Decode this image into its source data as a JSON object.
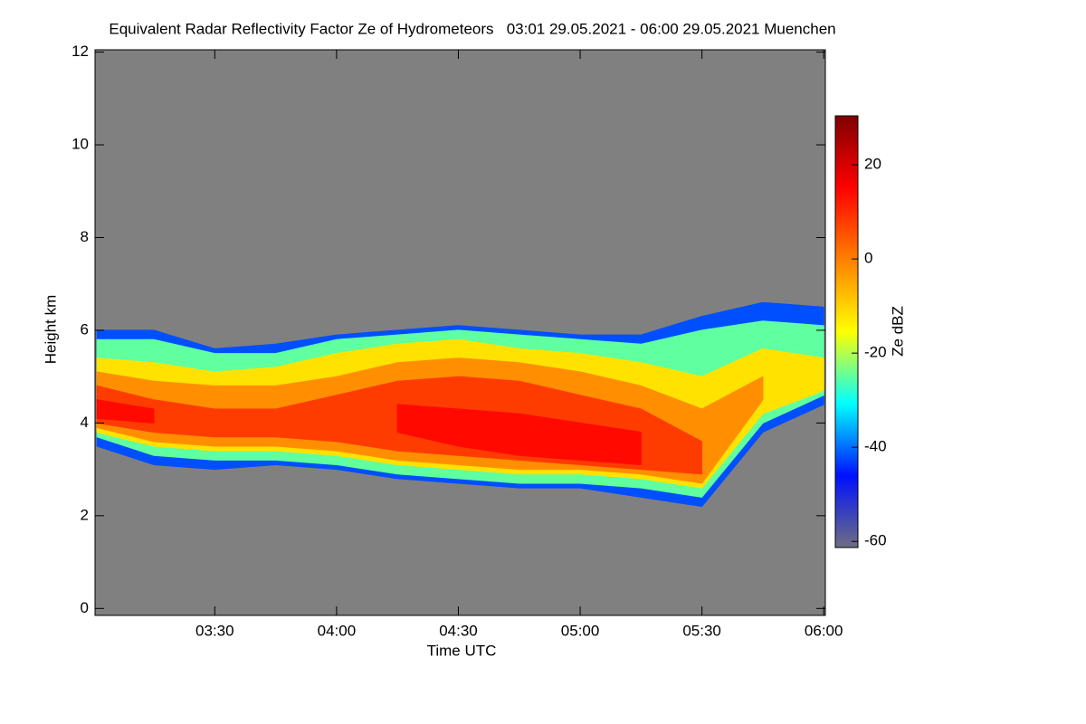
{
  "chart_data": {
    "type": "heatmap",
    "title": "Equivalent Radar Reflectivity Factor Ze of Hydrometeors   03:01 29.05.2021 - 06:00 29.05.2021 Muenchen",
    "xlabel": "Time UTC",
    "ylabel": "Height km",
    "colorbar_label": "Ze dBZ",
    "xlim": [
      180.5,
      360.4
    ],
    "xticks": [
      {
        "value": 210,
        "label": "03:30"
      },
      {
        "value": 240,
        "label": "04:00"
      },
      {
        "value": 270,
        "label": "04:30"
      },
      {
        "value": 300,
        "label": "05:00"
      },
      {
        "value": 330,
        "label": "05:30"
      },
      {
        "value": 360,
        "label": "06:00"
      }
    ],
    "ylim": [
      -0.15,
      12.05
    ],
    "yticks": [
      0,
      2,
      4,
      6,
      8,
      10,
      12
    ],
    "clim": [
      -61.3,
      30.4
    ],
    "cticks": [
      -60,
      -40,
      -20,
      0,
      20
    ],
    "colormap": [
      "#6e6e80",
      "#0010ff",
      "#00ffff",
      "#ffff00",
      "#ff8000",
      "#ff0000",
      "#800000"
    ],
    "background": "#808080",
    "x": [
      181,
      195,
      210,
      225,
      240,
      255,
      270,
      285,
      300,
      315,
      330,
      345,
      360
    ],
    "layers": [
      {
        "value": -42,
        "top": [
          6.0,
          6.0,
          5.6,
          5.7,
          5.9,
          6.0,
          6.1,
          6.0,
          5.9,
          5.9,
          6.3,
          6.6,
          6.5
        ],
        "base": [
          3.5,
          3.1,
          3.0,
          3.1,
          3.0,
          2.8,
          2.7,
          2.6,
          2.6,
          2.4,
          2.2,
          3.8,
          4.4
        ]
      },
      {
        "value": -25,
        "top": [
          5.8,
          5.8,
          5.5,
          5.5,
          5.8,
          5.9,
          6.0,
          5.9,
          5.8,
          5.7,
          6.0,
          6.2,
          6.1
        ],
        "base": [
          3.7,
          3.3,
          3.2,
          3.2,
          3.1,
          2.9,
          2.8,
          2.7,
          2.7,
          2.6,
          2.4,
          4.0,
          4.6
        ]
      },
      {
        "value": -12,
        "top": [
          5.4,
          5.3,
          5.1,
          5.2,
          5.5,
          5.7,
          5.8,
          5.6,
          5.5,
          5.3,
          5.0,
          5.6,
          5.4
        ],
        "base": [
          3.8,
          3.5,
          3.4,
          3.4,
          3.3,
          3.1,
          3.0,
          2.9,
          2.9,
          2.8,
          2.6,
          4.2,
          4.7
        ]
      },
      {
        "value": -2,
        "top": [
          5.1,
          4.9,
          4.8,
          4.8,
          5.0,
          5.3,
          5.4,
          5.3,
          5.1,
          4.8,
          4.3,
          5.0,
          null
        ],
        "base": [
          3.9,
          3.6,
          3.5,
          3.5,
          3.4,
          3.2,
          3.1,
          3.0,
          3.0,
          2.9,
          2.7,
          4.5,
          null
        ]
      },
      {
        "value": 8,
        "top": [
          4.8,
          4.5,
          4.3,
          4.3,
          4.6,
          4.9,
          5.0,
          4.9,
          4.6,
          4.3,
          3.6,
          null,
          null
        ],
        "base": [
          4.0,
          3.8,
          3.7,
          3.7,
          3.6,
          3.4,
          3.3,
          3.2,
          3.1,
          3.0,
          2.9,
          null,
          null
        ]
      },
      {
        "value": 14,
        "top": [
          4.5,
          4.3,
          null,
          null,
          null,
          4.4,
          4.3,
          4.2,
          4.0,
          3.8,
          null,
          null,
          null
        ],
        "base": [
          4.1,
          4.0,
          null,
          null,
          null,
          3.8,
          3.5,
          3.3,
          3.2,
          3.1,
          null,
          null,
          null
        ]
      }
    ]
  }
}
